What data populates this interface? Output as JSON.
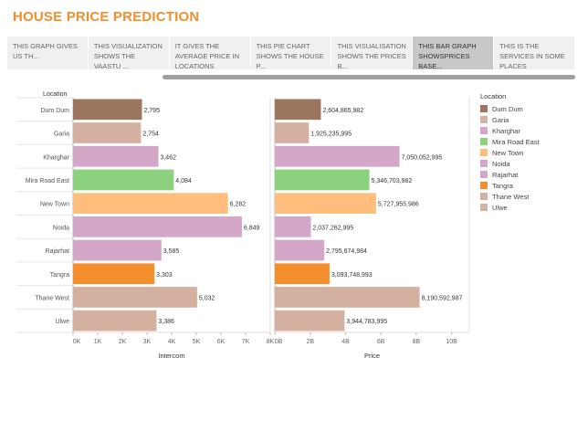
{
  "page_title": "HOUSE PRICE PREDICTION",
  "tabs": [
    {
      "label": "THIS GRAPH GIVES US TH...",
      "active": false
    },
    {
      "label": "THIS VISUALIZATION SHOWS THE VAASTU ...",
      "active": false
    },
    {
      "label": "IT GIVES THE AVERAGE PRICE IN LOCATIONS",
      "active": false
    },
    {
      "label": "THIS PIE CHART SHOWS THE HOUSE P...",
      "active": false
    },
    {
      "label": "THIS VISUALISATION SHOWS THE PRICES B...",
      "active": false
    },
    {
      "label": "THIS BAR GRAPH SHOWSPRICES BASE...",
      "active": true
    },
    {
      "label": "THIS IS THE SERVICES IN SOME PLACES",
      "active": false
    }
  ],
  "legend": {
    "title": "Location",
    "items": [
      {
        "label": "Dum Dum",
        "color": "#9c755f"
      },
      {
        "label": "Garia",
        "color": "#d4b0a0"
      },
      {
        "label": "Kharghar",
        "color": "#d4a6c8"
      },
      {
        "label": "Mira Road East",
        "color": "#8cd17d"
      },
      {
        "label": "New Town",
        "color": "#ffbe7d"
      },
      {
        "label": "Noida",
        "color": "#d4a6c8"
      },
      {
        "label": "Rajarhat",
        "color": "#d4a6c8"
      },
      {
        "label": "Tangra",
        "color": "#f28e2b"
      },
      {
        "label": "Thane West",
        "color": "#d4b0a0"
      },
      {
        "label": "Ulwe",
        "color": "#d4b0a0"
      }
    ]
  },
  "chart_data": [
    {
      "type": "bar",
      "orientation": "horizontal",
      "row_header": "Location",
      "xlabel": "Intercom",
      "xlim": [
        0,
        8000
      ],
      "ticks": [
        0,
        1000,
        2000,
        3000,
        4000,
        5000,
        6000,
        7000,
        8000
      ],
      "tick_labels": [
        "0K",
        "1K",
        "2K",
        "3K",
        "4K",
        "5K",
        "6K",
        "7K",
        "8K"
      ],
      "categories": [
        "Dum Dum",
        "Garia",
        "Kharghar",
        "Mira Road East",
        "New Town",
        "Noida",
        "Rajarhat",
        "Tangra",
        "Thane West",
        "Ulwe"
      ],
      "values": [
        2795,
        2754,
        3462,
        4084,
        6282,
        6849,
        3585,
        3303,
        5032,
        3386
      ],
      "value_labels": [
        "2,795",
        "2,754",
        "3,462",
        "4,084",
        "6,282",
        "6,849",
        "3,585",
        "3,303",
        "5,032",
        "3,386"
      ],
      "colors": [
        "#9c755f",
        "#d4b0a0",
        "#d4a6c8",
        "#8cd17d",
        "#ffbe7d",
        "#d4a6c8",
        "#d4a6c8",
        "#f28e2b",
        "#d4b0a0",
        "#d4b0a0"
      ]
    },
    {
      "type": "bar",
      "orientation": "horizontal",
      "xlabel": "Price",
      "xlim": [
        0,
        11000000000
      ],
      "ticks": [
        0,
        2000000000,
        4000000000,
        6000000000,
        8000000000,
        10000000000
      ],
      "tick_labels": [
        "0B",
        "2B",
        "4B",
        "6B",
        "8B",
        "10B"
      ],
      "categories": [
        "Dum Dum",
        "Garia",
        "Kharghar",
        "Mira Road East",
        "New Town",
        "Noida",
        "Rajarhat",
        "Tangra",
        "Thane West",
        "Ulwe"
      ],
      "values": [
        2604865982,
        1925235995,
        7050052995,
        5346703982,
        5727955986,
        2037262995,
        2795674984,
        3093748993,
        8190592987,
        3944783995
      ],
      "value_labels": [
        "2,604,865,982",
        "1,925,235,995",
        "7,050,052,995",
        "5,346,703,982",
        "5,727,955,986",
        "2,037,262,995",
        "2,795,674,984",
        "3,093,748,993",
        "8,190,592,987",
        "3,944,783,995"
      ],
      "colors": [
        "#9c755f",
        "#d4b0a0",
        "#d4a6c8",
        "#8cd17d",
        "#ffbe7d",
        "#d4a6c8",
        "#d4a6c8",
        "#f28e2b",
        "#d4b0a0",
        "#d4b0a0"
      ]
    }
  ]
}
